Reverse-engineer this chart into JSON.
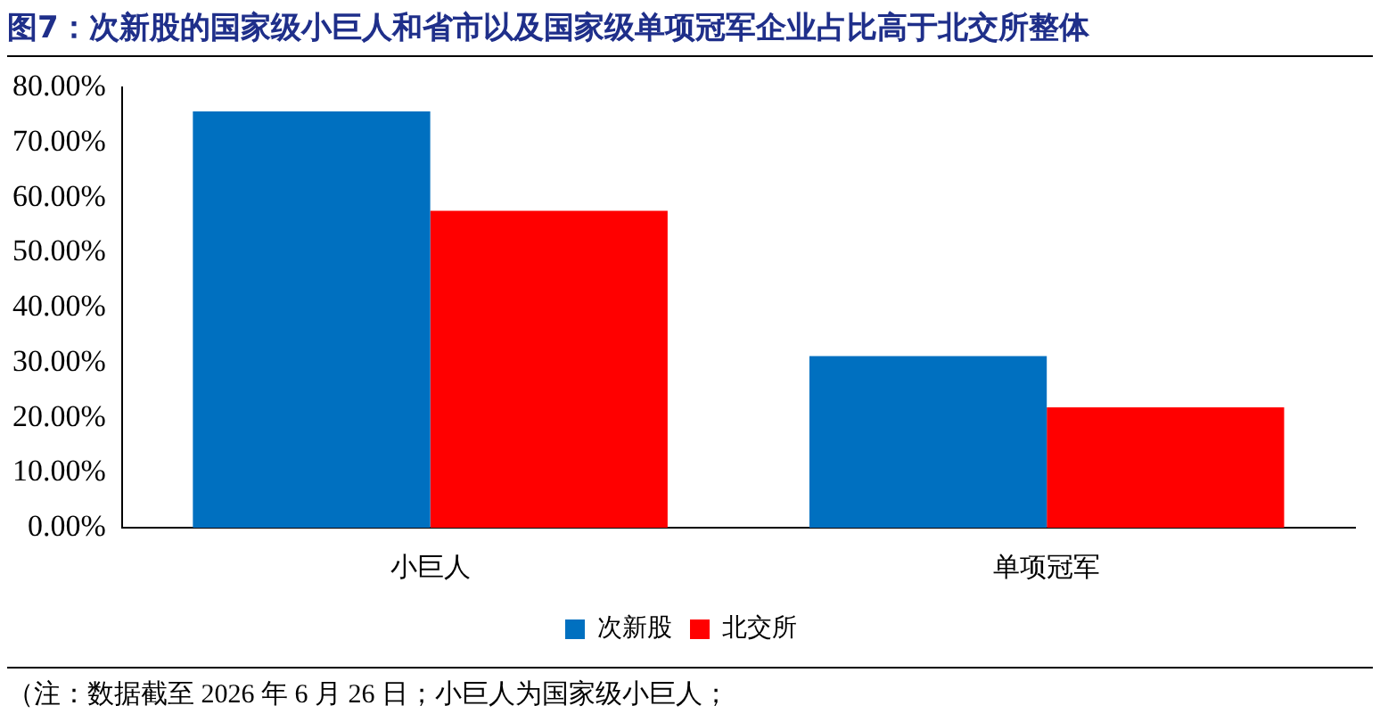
{
  "chart_data": {
    "type": "bar",
    "title": "图7：次新股的国家级小巨人和省市以及国家级单项冠军企业占比高于北交所整体",
    "categories": [
      "小巨人",
      "单项冠军"
    ],
    "series": [
      {
        "name": "次新股",
        "color": "#0070c0",
        "values": [
          75.7,
          31.2
        ]
      },
      {
        "name": "北交所",
        "color": "#ff0000",
        "values": [
          57.6,
          21.9
        ]
      }
    ],
    "ylim": [
      0,
      80
    ],
    "yticks": [
      {
        "value": 0,
        "label": "0.00%"
      },
      {
        "value": 10,
        "label": "10.00%"
      },
      {
        "value": 20,
        "label": "20.00%"
      },
      {
        "value": 30,
        "label": "30.00%"
      },
      {
        "value": 40,
        "label": "40.00%"
      },
      {
        "value": 50,
        "label": "50.00%"
      },
      {
        "value": 60,
        "label": "60.00%"
      },
      {
        "value": 70,
        "label": "70.00%"
      },
      {
        "value": 80,
        "label": "80.00%"
      }
    ],
    "grid": false,
    "legend": "bottom",
    "annotations": [
      "（注：数据截至 2026 年 6 月 26 日；小巨人为国家级小巨人；"
    ]
  }
}
